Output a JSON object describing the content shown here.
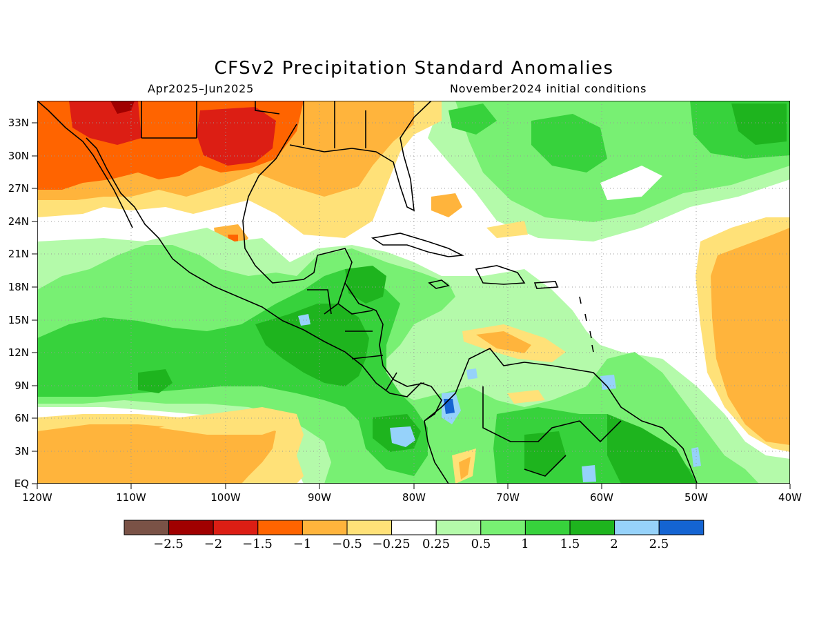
{
  "header": {
    "title": "CFSv2 Precipitation Standard Anomalies",
    "period": "Apr2025–Jun2025",
    "init": "November2024 initial conditions"
  },
  "map": {
    "lon_range": [
      -120,
      -40
    ],
    "lat_range": [
      0,
      35
    ],
    "x_ticks": [
      "120W",
      "110W",
      "100W",
      "90W",
      "80W",
      "70W",
      "60W",
      "50W",
      "40W"
    ],
    "y_ticks": [
      "EQ",
      "3N",
      "6N",
      "9N",
      "12N",
      "15N",
      "18N",
      "21N",
      "24N",
      "27N",
      "30N",
      "33N"
    ],
    "gridlines": "dotted"
  },
  "colorbar": {
    "labels": [
      "−2.5",
      "−2",
      "−1.5",
      "−1",
      "−0.5",
      "−0.25",
      "0.25",
      "0.5",
      "1",
      "1.5",
      "2",
      "2.5"
    ],
    "colors": [
      "#7a5246",
      "#a00000",
      "#dc1e14",
      "#ff6400",
      "#ffb43c",
      "#ffe178",
      "#ffffff",
      "#b4faaa",
      "#78f073",
      "#37d23c",
      "#1eb41e",
      "#96d2fa",
      "#1464d2"
    ]
  },
  "regions": [
    {
      "name": "Northwest Mexico dry anomaly",
      "lon": -106,
      "lat": 30,
      "value": -1.5
    },
    {
      "name": "Texas dry anomaly",
      "lon": -98,
      "lat": 31,
      "value": -1.8
    },
    {
      "name": "Gulf of Mexico",
      "lon": -88,
      "lat": 26,
      "value": -0.6
    },
    {
      "name": "Central America wet anomaly",
      "lon": -87,
      "lat": 14,
      "value": 1.6
    },
    {
      "name": "Eastern Pacific wet anomaly",
      "lon": -100,
      "lat": 11,
      "value": 1.2
    },
    {
      "name": "Panama wet maximum",
      "lon": -77,
      "lat": 7,
      "value": 2.6
    },
    {
      "name": "Northern South America",
      "lon": -68,
      "lat": 5,
      "value": 1.5
    },
    {
      "name": "Western Atlantic wet anomaly",
      "lon": -48,
      "lat": 31,
      "value": 1.6
    },
    {
      "name": "Eastern Atlantic dry anomaly",
      "lon": -42,
      "lat": 13,
      "value": -0.7
    },
    {
      "name": "Near-equatorial Pacific dry",
      "lon": -110,
      "lat": 3,
      "value": -0.6
    }
  ]
}
